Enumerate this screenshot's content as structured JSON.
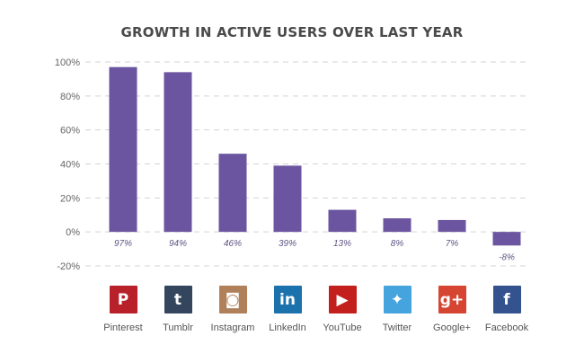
{
  "chart_data": {
    "type": "bar",
    "title": "GROWTH IN ACTIVE USERS OVER LAST YEAR",
    "categories": [
      "Pinterest",
      "Tumblr",
      "Instagram",
      "LinkedIn",
      "YouTube",
      "Twitter",
      "Google+",
      "Facebook"
    ],
    "values": [
      97,
      94,
      46,
      39,
      13,
      8,
      7,
      -8
    ],
    "data_labels": [
      "97%",
      "94%",
      "46%",
      "39%",
      "13%",
      "8%",
      "7%",
      "-8%"
    ],
    "y_ticks": [
      100,
      80,
      60,
      40,
      20,
      0,
      -20
    ],
    "y_tick_labels": [
      "100%",
      "80%",
      "60%",
      "40%",
      "20%",
      "0%",
      "-20%"
    ],
    "ylim": [
      -20,
      100
    ],
    "grid": true,
    "xlabel": "",
    "ylabel": "",
    "bar_color": "#6b55a0"
  },
  "networks": [
    {
      "name": "Pinterest",
      "icon": "pinterest-icon",
      "glyph": "P",
      "color": "#b8202a"
    },
    {
      "name": "Tumblr",
      "icon": "tumblr-icon",
      "glyph": "t",
      "color": "#34465d"
    },
    {
      "name": "Instagram",
      "icon": "instagram-icon",
      "glyph": "◙",
      "color": "#b0805a"
    },
    {
      "name": "LinkedIn",
      "icon": "linkedin-icon",
      "glyph": "in",
      "color": "#1c72ad"
    },
    {
      "name": "YouTube",
      "icon": "youtube-icon",
      "glyph": "▶",
      "color": "#c3201d"
    },
    {
      "name": "Twitter",
      "icon": "twitter-icon",
      "glyph": "✦",
      "color": "#45a3dd"
    },
    {
      "name": "Google+",
      "icon": "google-plus-icon",
      "glyph": "g+",
      "color": "#d54532"
    },
    {
      "name": "Facebook",
      "icon": "facebook-icon",
      "glyph": "f",
      "color": "#34528e"
    }
  ]
}
